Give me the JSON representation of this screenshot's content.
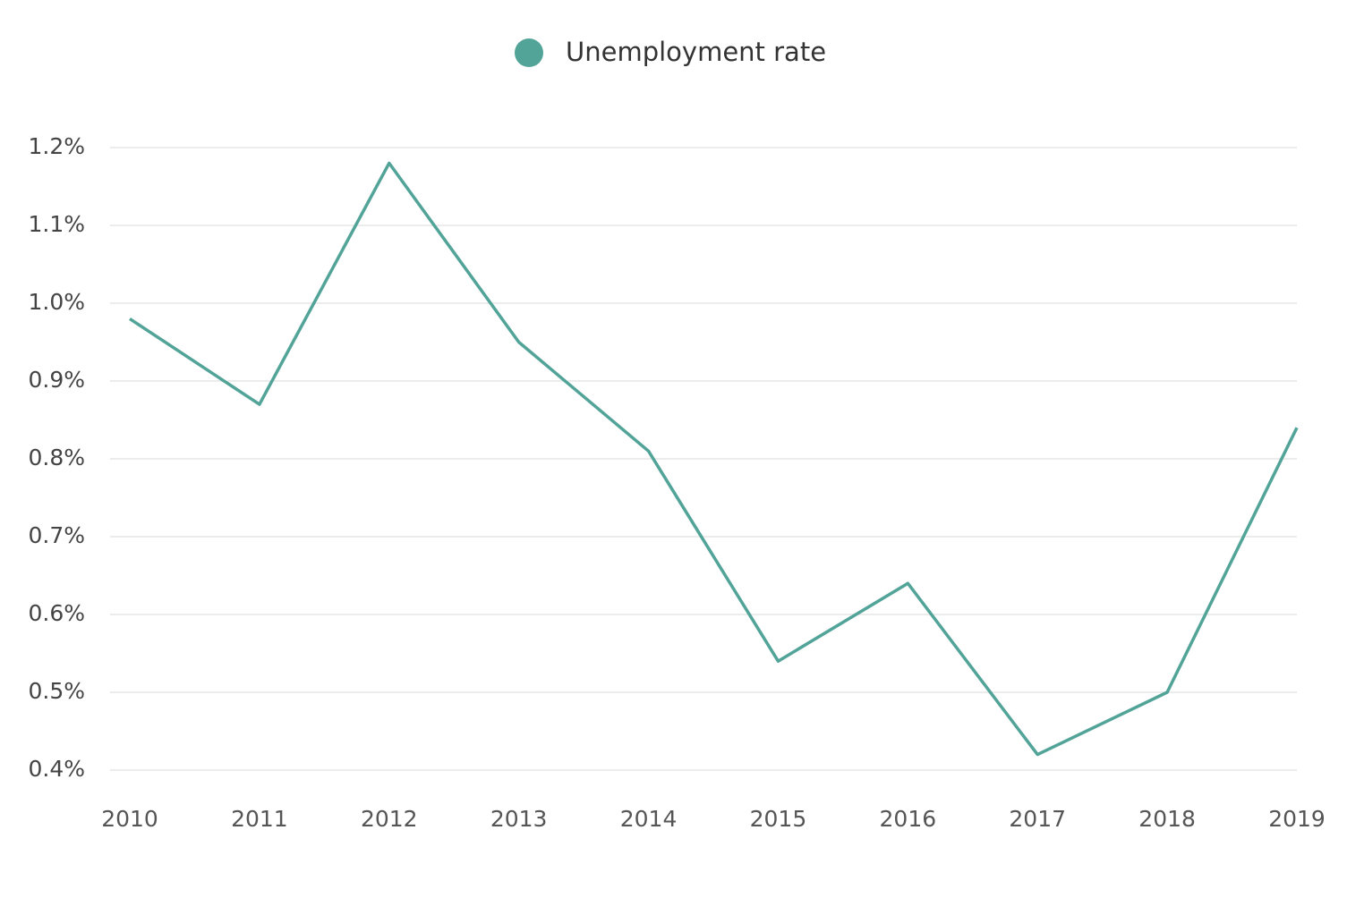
{
  "chart_data": {
    "type": "line",
    "categories": [
      "2010",
      "2011",
      "2012",
      "2013",
      "2014",
      "2015",
      "2016",
      "2017",
      "2018",
      "2019"
    ],
    "series": [
      {
        "name": "Unemployment rate",
        "color": "#52a398",
        "values": [
          0.98,
          0.87,
          1.18,
          0.95,
          0.81,
          0.54,
          0.64,
          0.42,
          0.5,
          0.84
        ]
      }
    ],
    "ylim": [
      0.4,
      1.2
    ],
    "yticks": [
      {
        "value": 0.4,
        "label": "0.4%"
      },
      {
        "value": 0.5,
        "label": "0.5%"
      },
      {
        "value": 0.6,
        "label": "0.6%"
      },
      {
        "value": 0.7,
        "label": "0.7%"
      },
      {
        "value": 0.8,
        "label": "0.8%"
      },
      {
        "value": 0.9,
        "label": "0.9%"
      },
      {
        "value": 1.0,
        "label": "1.0%"
      },
      {
        "value": 1.1,
        "label": "1.1%"
      },
      {
        "value": 1.2,
        "label": "1.2%"
      }
    ],
    "grid": true
  }
}
